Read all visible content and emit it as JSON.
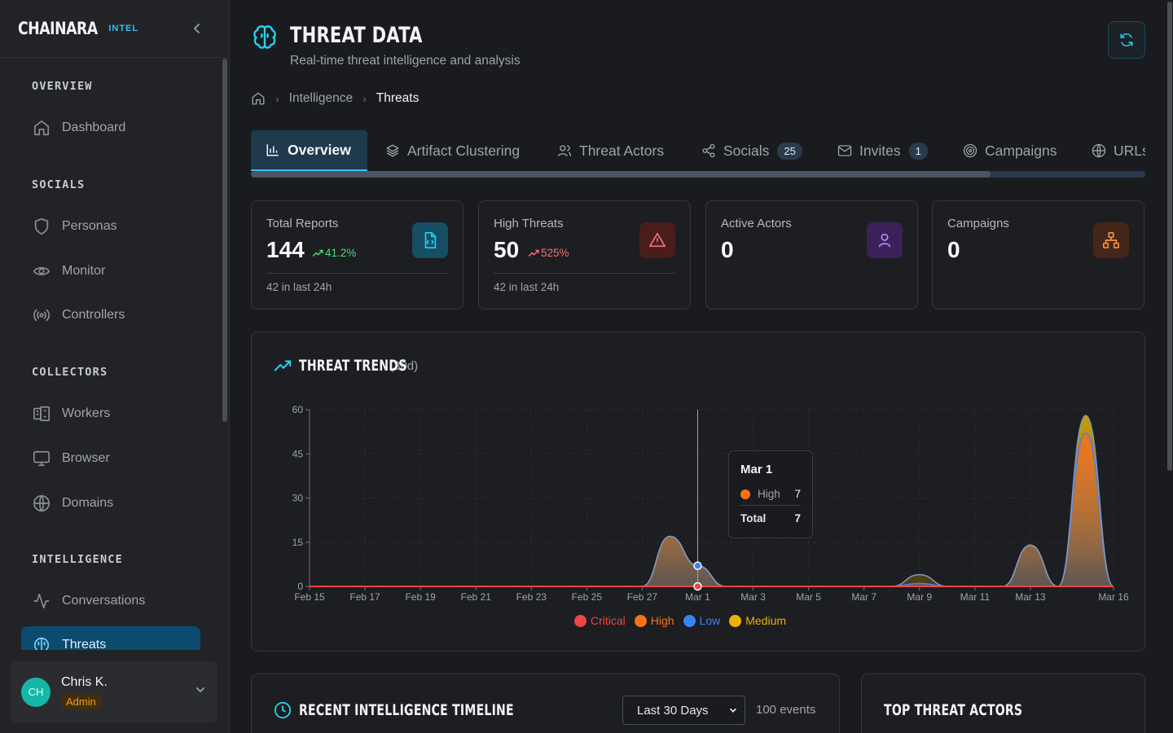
{
  "brand": {
    "name": "CHAINARA",
    "tag": "INTEL"
  },
  "sidebar": {
    "sections": [
      {
        "title": "OVERVIEW",
        "items": [
          {
            "label": "Dashboard",
            "icon": "home-icon"
          }
        ]
      },
      {
        "title": "SOCIALS",
        "items": [
          {
            "label": "Personas",
            "icon": "shield-icon"
          },
          {
            "label": "Monitor",
            "icon": "eye-icon"
          },
          {
            "label": "Controllers",
            "icon": "radio-icon"
          }
        ]
      },
      {
        "title": "COLLECTORS",
        "items": [
          {
            "label": "Workers",
            "icon": "workers-icon"
          },
          {
            "label": "Browser",
            "icon": "monitor-icon"
          },
          {
            "label": "Domains",
            "icon": "globe-icon"
          }
        ]
      },
      {
        "title": "INTELLIGENCE",
        "items": [
          {
            "label": "Conversations",
            "icon": "activity-icon"
          },
          {
            "label": "Threats",
            "icon": "brain-icon"
          }
        ]
      }
    ],
    "active": "Threats"
  },
  "user": {
    "initials": "CH",
    "name": "Chris K.",
    "role": "Admin"
  },
  "header": {
    "title": "THREAT DATA",
    "subtitle": "Real-time threat intelligence and analysis"
  },
  "breadcrumb": {
    "level1": "Intelligence",
    "current": "Threats"
  },
  "tabs": [
    {
      "label": "Overview",
      "icon": "bar-chart-icon",
      "badge": ""
    },
    {
      "label": "Artifact Clustering",
      "icon": "layers-icon",
      "badge": ""
    },
    {
      "label": "Threat Actors",
      "icon": "users-icon",
      "badge": ""
    },
    {
      "label": "Socials",
      "icon": "share-icon",
      "badge": "25"
    },
    {
      "label": "Invites",
      "icon": "mail-icon",
      "badge": "1"
    },
    {
      "label": "Campaigns",
      "icon": "target-icon",
      "badge": ""
    },
    {
      "label": "URLs",
      "icon": "globe-icon",
      "badge": ""
    }
  ],
  "stats": [
    {
      "label": "Total Reports",
      "value": "144",
      "change": "41.2%",
      "change_color": "#4ade80",
      "foot": "42 in last 24h",
      "icon": "file-code-icon",
      "icon_bg": "#164e63",
      "icon_color": "#22d3ee"
    },
    {
      "label": "High Threats",
      "value": "50",
      "change": "525%",
      "change_color": "#f87171",
      "foot": "42 in last 24h",
      "icon": "alert-triangle-icon",
      "icon_bg": "#4a1d1d",
      "icon_color": "#f87171"
    },
    {
      "label": "Active Actors",
      "value": "0",
      "change": "",
      "change_color": "",
      "foot": "",
      "icon": "user-icon",
      "icon_bg": "#3b2159",
      "icon_color": "#c084fc"
    },
    {
      "label": "Campaigns",
      "value": "0",
      "change": "",
      "change_color": "",
      "foot": "",
      "icon": "network-icon",
      "icon_bg": "#46261a",
      "icon_color": "#fb923c"
    }
  ],
  "chart": {
    "title": "THREAT TRENDS",
    "range": "(30d)",
    "tooltip": {
      "date": "Mar 1",
      "series": "High",
      "value": "7",
      "total_label": "Total",
      "total": "7"
    }
  },
  "chart_data": {
    "type": "area",
    "x": [
      "Feb 15",
      "Feb 16",
      "Feb 17",
      "Feb 18",
      "Feb 19",
      "Feb 20",
      "Feb 21",
      "Feb 22",
      "Feb 23",
      "Feb 24",
      "Feb 25",
      "Feb 26",
      "Feb 27",
      "Feb 28",
      "Mar 1",
      "Mar 2",
      "Mar 3",
      "Mar 4",
      "Mar 5",
      "Mar 6",
      "Mar 7",
      "Mar 8",
      "Mar 9",
      "Mar 10",
      "Mar 11",
      "Mar 12",
      "Mar 13",
      "Mar 14",
      "Mar 15",
      "Mar 16"
    ],
    "x_ticks": [
      "Feb 15",
      "Feb 17",
      "Feb 19",
      "Feb 21",
      "Feb 23",
      "Feb 25",
      "Feb 27",
      "Mar 1",
      "Mar 3",
      "Mar 5",
      "Mar 7",
      "Mar 9",
      "Mar 11",
      "Mar 13",
      "Mar 16"
    ],
    "y_ticks": [
      0,
      15,
      30,
      45,
      60
    ],
    "ylim": [
      0,
      60
    ],
    "series": [
      {
        "name": "Critical",
        "color": "#ef4444",
        "values": [
          0,
          0,
          0,
          0,
          0,
          0,
          0,
          0,
          0,
          0,
          0,
          0,
          0,
          0,
          0,
          0,
          0,
          0,
          0,
          0,
          0,
          0,
          0,
          0,
          0,
          0,
          0,
          0,
          0,
          0
        ]
      },
      {
        "name": "High",
        "color": "#f97316",
        "values": [
          0,
          0,
          0,
          0,
          0,
          0,
          0,
          0,
          0,
          0,
          0,
          0,
          0,
          17,
          7,
          0,
          0,
          0,
          0,
          0,
          0,
          0,
          1,
          0,
          0,
          0,
          14,
          0,
          52,
          0
        ]
      },
      {
        "name": "Low",
        "color": "#3b82f6",
        "values": [
          0,
          0,
          0,
          0,
          0,
          0,
          0,
          0,
          0,
          0,
          0,
          0,
          0,
          0,
          0,
          0,
          0,
          0,
          0,
          0,
          0,
          0,
          0,
          0,
          0,
          0,
          0,
          0,
          0,
          0
        ]
      },
      {
        "name": "Medium",
        "color": "#eab308",
        "values": [
          0,
          0,
          0,
          0,
          0,
          0,
          0,
          0,
          0,
          0,
          0,
          0,
          0,
          0,
          0,
          0,
          0,
          0,
          0,
          0,
          0,
          0,
          3,
          0,
          0,
          0,
          0,
          0,
          6,
          0
        ]
      }
    ],
    "grid": true,
    "legend": "bottom"
  },
  "timeline": {
    "title": "RECENT INTELLIGENCE TIMELINE",
    "select_value": "Last 30 Days",
    "events": "100 events"
  },
  "actors": {
    "title": "TOP THREAT ACTORS"
  }
}
